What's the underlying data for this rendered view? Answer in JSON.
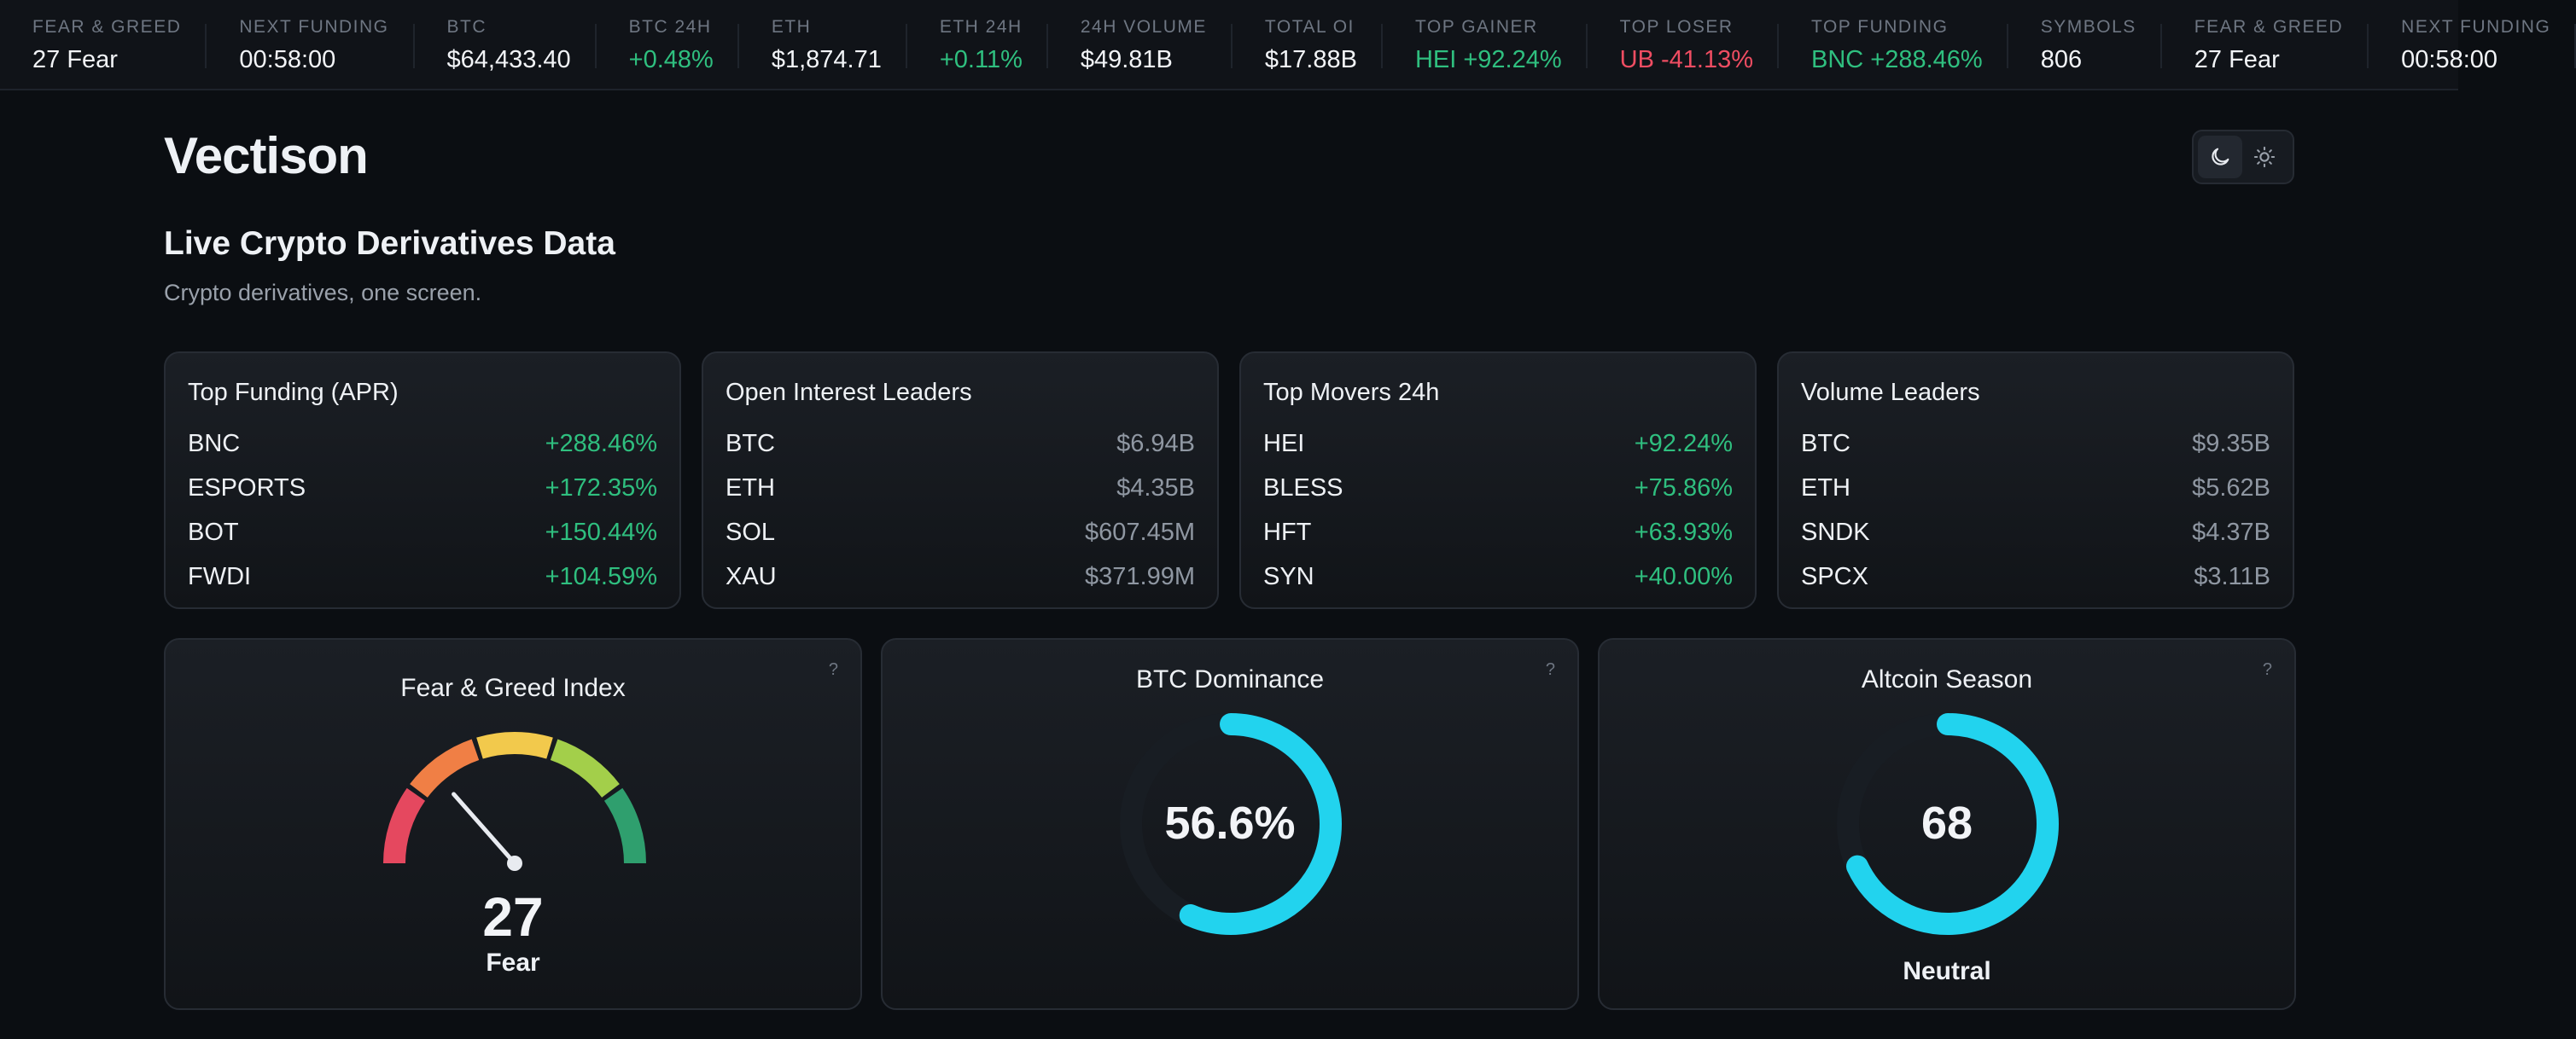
{
  "ticker": [
    {
      "label": "FEAR & GREED",
      "value": "27 Fear",
      "tone": ""
    },
    {
      "label": "NEXT FUNDING",
      "value": "00:58:00",
      "tone": ""
    },
    {
      "label": "BTC",
      "value": "$64,433.40",
      "tone": ""
    },
    {
      "label": "BTC 24H",
      "value": "+0.48%",
      "tone": "pos"
    },
    {
      "label": "ETH",
      "value": "$1,874.71",
      "tone": ""
    },
    {
      "label": "ETH 24H",
      "value": "+0.11%",
      "tone": "pos"
    },
    {
      "label": "24H VOLUME",
      "value": "$49.81B",
      "tone": ""
    },
    {
      "label": "TOTAL OI",
      "value": "$17.88B",
      "tone": ""
    },
    {
      "label": "TOP GAINER",
      "value": "HEI +92.24%",
      "tone": "pos"
    },
    {
      "label": "TOP LOSER",
      "value": "UB -41.13%",
      "tone": "neg"
    },
    {
      "label": "TOP FUNDING",
      "value": "BNC +288.46%",
      "tone": "pos"
    },
    {
      "label": "SYMBOLS",
      "value": "806",
      "tone": ""
    },
    {
      "label": "FEAR & GREED",
      "value": "27 Fear",
      "tone": ""
    },
    {
      "label": "NEXT FUNDING",
      "value": "00:58:00",
      "tone": ""
    }
  ],
  "header": {
    "brand": "Vectison",
    "title": "Live Crypto Derivatives Data",
    "subtitle": "Crypto derivatives, one screen."
  },
  "theme_toggle": {
    "dark_icon": "moon-icon",
    "light_icon": "sun-icon",
    "active": "dark"
  },
  "cards": [
    {
      "title": "Top Funding (APR)",
      "tone": "pos",
      "rows": [
        {
          "symbol": "BNC",
          "value": "+288.46%"
        },
        {
          "symbol": "ESPORTS",
          "value": "+172.35%"
        },
        {
          "symbol": "BOT",
          "value": "+150.44%"
        },
        {
          "symbol": "FWDI",
          "value": "+104.59%"
        }
      ]
    },
    {
      "title": "Open Interest Leaders",
      "tone": "",
      "rows": [
        {
          "symbol": "BTC",
          "value": "$6.94B"
        },
        {
          "symbol": "ETH",
          "value": "$4.35B"
        },
        {
          "symbol": "SOL",
          "value": "$607.45M"
        },
        {
          "symbol": "XAU",
          "value": "$371.99M"
        }
      ]
    },
    {
      "title": "Top Movers 24h",
      "tone": "pos",
      "rows": [
        {
          "symbol": "HEI",
          "value": "+92.24%"
        },
        {
          "symbol": "BLESS",
          "value": "+75.86%"
        },
        {
          "symbol": "HFT",
          "value": "+63.93%"
        },
        {
          "symbol": "SYN",
          "value": "+40.00%"
        }
      ]
    },
    {
      "title": "Volume Leaders",
      "tone": "",
      "rows": [
        {
          "symbol": "BTC",
          "value": "$9.35B"
        },
        {
          "symbol": "ETH",
          "value": "$5.62B"
        },
        {
          "symbol": "SNDK",
          "value": "$4.37B"
        },
        {
          "symbol": "SPCX",
          "value": "$3.11B"
        }
      ]
    }
  ],
  "fear_greed": {
    "title": "Fear & Greed Index",
    "value": 27,
    "max": 100,
    "value_text": "27",
    "label": "Fear",
    "help": "?"
  },
  "btc_dominance": {
    "title": "BTC Dominance",
    "value": 56.6,
    "max": 100,
    "value_text": "56.6%",
    "help": "?"
  },
  "altcoin_season": {
    "title": "Altcoin Season",
    "value": 68,
    "max": 100,
    "value_text": "68",
    "label": "Neutral",
    "help": "?"
  },
  "colors": {
    "positive": "#2fbf7f",
    "negative": "#ef4d62",
    "ring": "#22d3ee",
    "ring_track": "#181d23",
    "gauge_segments": [
      "#e5485f",
      "#f07f45",
      "#f2c94c",
      "#a3cf4a",
      "#2f9f6e"
    ]
  }
}
